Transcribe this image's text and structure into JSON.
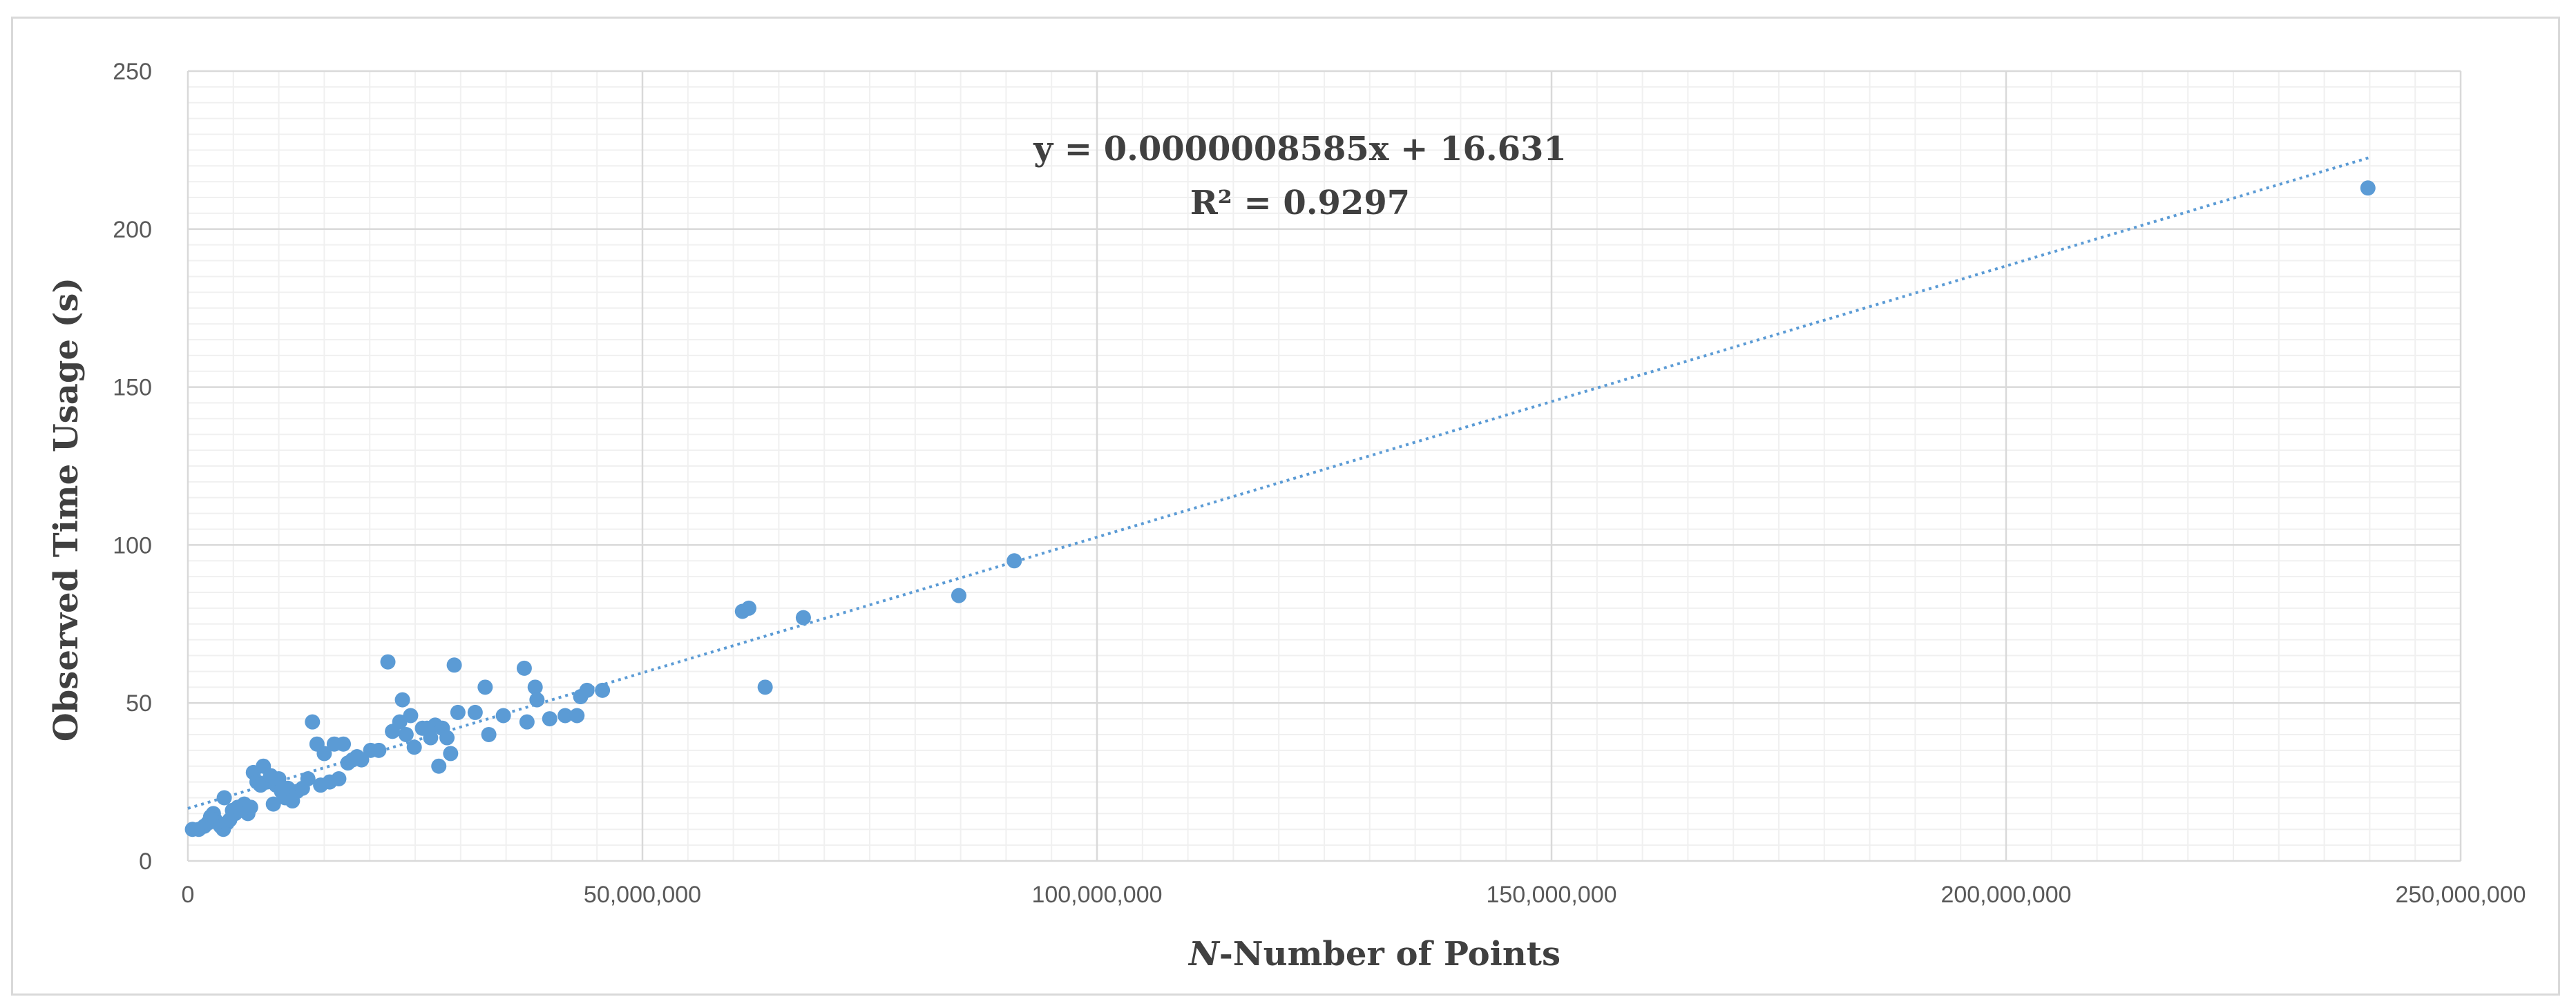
{
  "chart_data": {
    "type": "scatter",
    "xlabel_italic": "N",
    "xlabel_rest": "-Number of Points",
    "ylabel": "Observed Time Usage (s)",
    "xlim": [
      0,
      250000000
    ],
    "ylim": [
      0,
      250
    ],
    "x_ticks": [
      0,
      50000000,
      100000000,
      150000000,
      200000000,
      250000000
    ],
    "x_tick_labels": [
      "0",
      "50,000,000",
      "100,000,000",
      "150,000,000",
      "200,000,000",
      "250,000,000"
    ],
    "y_ticks": [
      0,
      50,
      100,
      150,
      200,
      250
    ],
    "y_tick_labels": [
      "0",
      "50",
      "100",
      "150",
      "200",
      "250"
    ],
    "grid": true,
    "trendline": {
      "type": "linear",
      "slope": 8.585e-07,
      "intercept": 16.631,
      "x_range": [
        0,
        240000000
      ],
      "equation": "y = 0.0000008585x + 16.631",
      "r_squared": "R² = 0.9297"
    },
    "point_color": "#5b9bd5",
    "points": [
      [
        500000,
        10
      ],
      [
        1200000,
        10
      ],
      [
        1800000,
        11
      ],
      [
        2200000,
        12
      ],
      [
        2500000,
        14
      ],
      [
        2800000,
        15
      ],
      [
        3000000,
        13
      ],
      [
        3300000,
        12
      ],
      [
        3600000,
        11
      ],
      [
        3900000,
        10
      ],
      [
        4000000,
        20
      ],
      [
        4300000,
        12
      ],
      [
        4600000,
        13
      ],
      [
        4900000,
        16
      ],
      [
        5200000,
        15
      ],
      [
        5500000,
        17
      ],
      [
        5800000,
        16
      ],
      [
        6200000,
        18
      ],
      [
        6600000,
        15
      ],
      [
        6900000,
        17
      ],
      [
        7200000,
        28
      ],
      [
        7600000,
        25
      ],
      [
        8000000,
        24
      ],
      [
        8300000,
        30
      ],
      [
        8700000,
        25
      ],
      [
        9100000,
        27
      ],
      [
        9400000,
        18
      ],
      [
        9700000,
        24
      ],
      [
        10000000,
        26
      ],
      [
        10300000,
        22
      ],
      [
        10700000,
        20
      ],
      [
        11000000,
        23
      ],
      [
        11500000,
        19
      ],
      [
        12000000,
        22
      ],
      [
        12600000,
        23
      ],
      [
        13200000,
        26
      ],
      [
        13700000,
        44
      ],
      [
        14200000,
        37
      ],
      [
        14600000,
        24
      ],
      [
        15000000,
        34
      ],
      [
        15600000,
        25
      ],
      [
        16100000,
        37
      ],
      [
        16600000,
        26
      ],
      [
        17100000,
        37
      ],
      [
        17600000,
        31
      ],
      [
        18100000,
        32
      ],
      [
        18600000,
        33
      ],
      [
        19100000,
        32
      ],
      [
        20100000,
        35
      ],
      [
        21000000,
        35
      ],
      [
        22000000,
        63
      ],
      [
        22500000,
        41
      ],
      [
        23300000,
        44
      ],
      [
        23600000,
        51
      ],
      [
        24000000,
        40
      ],
      [
        24500000,
        46
      ],
      [
        24900000,
        36
      ],
      [
        25800000,
        42
      ],
      [
        26300000,
        42
      ],
      [
        26700000,
        39
      ],
      [
        27200000,
        43
      ],
      [
        27600000,
        30
      ],
      [
        28000000,
        42
      ],
      [
        28500000,
        39
      ],
      [
        28900000,
        34
      ],
      [
        29300000,
        62
      ],
      [
        29700000,
        47
      ],
      [
        31600000,
        47
      ],
      [
        32700000,
        55
      ],
      [
        33100000,
        40
      ],
      [
        34700000,
        46
      ],
      [
        37000000,
        61
      ],
      [
        37300000,
        44
      ],
      [
        38200000,
        55
      ],
      [
        38400000,
        51
      ],
      [
        39800000,
        45
      ],
      [
        41500000,
        46
      ],
      [
        42800000,
        46
      ],
      [
        43200000,
        52
      ],
      [
        43900000,
        54
      ],
      [
        45600000,
        54
      ],
      [
        61000000,
        79
      ],
      [
        61700000,
        80
      ],
      [
        63500000,
        55
      ],
      [
        67700000,
        77
      ],
      [
        84800000,
        84
      ],
      [
        90900000,
        95
      ],
      [
        239800000,
        213
      ]
    ]
  }
}
